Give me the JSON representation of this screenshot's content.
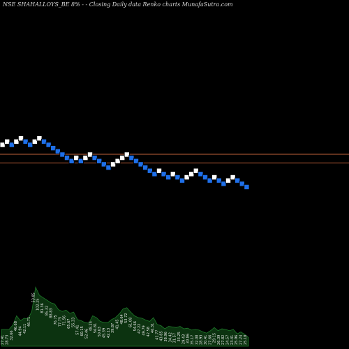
{
  "title": "NSE SHAHALLOYS_BE 8% - - Closing Daily data Renko charts MunafaSutra.com",
  "colors": {
    "background": "#000000",
    "brick_up": "#ffffff",
    "brick_down": "#1e6fe8",
    "brick_border": "#000000",
    "resistance_line": "#c0623a",
    "volume_fill": "#0c3310",
    "volume_stroke": "#1f7a2a",
    "text": "#d8d8d8"
  },
  "chart_data": {
    "type": "renko",
    "title": "NSE SHAHALLOYS_BE 8% - - Closing Daily data Renko charts MunafaSutra.com",
    "brick_size_pct": 8,
    "bricks": [
      {
        "level": 0,
        "dir": "up"
      },
      {
        "level": 1,
        "dir": "up"
      },
      {
        "level": 0,
        "dir": "down"
      },
      {
        "level": 1,
        "dir": "up"
      },
      {
        "level": 2,
        "dir": "up"
      },
      {
        "level": 1,
        "dir": "down"
      },
      {
        "level": 0,
        "dir": "down"
      },
      {
        "level": 1,
        "dir": "up"
      },
      {
        "level": 2,
        "dir": "up"
      },
      {
        "level": 1,
        "dir": "down"
      },
      {
        "level": 0,
        "dir": "down"
      },
      {
        "level": -1,
        "dir": "down"
      },
      {
        "level": -2,
        "dir": "down"
      },
      {
        "level": -3,
        "dir": "down"
      },
      {
        "level": -4,
        "dir": "down"
      },
      {
        "level": -5,
        "dir": "down"
      },
      {
        "level": -4,
        "dir": "up"
      },
      {
        "level": -5,
        "dir": "down"
      },
      {
        "level": -4,
        "dir": "up"
      },
      {
        "level": -3,
        "dir": "up"
      },
      {
        "level": -4,
        "dir": "down"
      },
      {
        "level": -5,
        "dir": "down"
      },
      {
        "level": -6,
        "dir": "down"
      },
      {
        "level": -7,
        "dir": "down"
      },
      {
        "level": -6,
        "dir": "up"
      },
      {
        "level": -5,
        "dir": "up"
      },
      {
        "level": -4,
        "dir": "up"
      },
      {
        "level": -3,
        "dir": "up"
      },
      {
        "level": -4,
        "dir": "down"
      },
      {
        "level": -5,
        "dir": "down"
      },
      {
        "level": -6,
        "dir": "down"
      },
      {
        "level": -7,
        "dir": "down"
      },
      {
        "level": -8,
        "dir": "down"
      },
      {
        "level": -9,
        "dir": "down"
      },
      {
        "level": -8,
        "dir": "up"
      },
      {
        "level": -9,
        "dir": "down"
      },
      {
        "level": -10,
        "dir": "down"
      },
      {
        "level": -9,
        "dir": "up"
      },
      {
        "level": -10,
        "dir": "down"
      },
      {
        "level": -11,
        "dir": "down"
      },
      {
        "level": -10,
        "dir": "up"
      },
      {
        "level": -9,
        "dir": "up"
      },
      {
        "level": -8,
        "dir": "up"
      },
      {
        "level": -9,
        "dir": "down"
      },
      {
        "level": -10,
        "dir": "down"
      },
      {
        "level": -11,
        "dir": "down"
      },
      {
        "level": -10,
        "dir": "up"
      },
      {
        "level": -11,
        "dir": "down"
      },
      {
        "level": -12,
        "dir": "down"
      },
      {
        "level": -11,
        "dir": "up"
      },
      {
        "level": -10,
        "dir": "up"
      },
      {
        "level": -11,
        "dir": "down"
      },
      {
        "level": -12,
        "dir": "down"
      },
      {
        "level": -13,
        "dir": "down"
      }
    ],
    "resistance_levels": [
      -2.9,
      -5.6
    ],
    "volume": [
      27,
      27,
      27,
      34,
      49,
      41,
      45,
      44,
      56,
      95,
      82,
      78,
      74,
      70,
      68,
      59,
      56,
      58,
      53,
      55,
      43,
      41,
      38,
      37,
      49,
      46,
      40,
      38,
      38,
      43,
      46,
      52,
      60,
      62,
      55,
      49,
      46,
      45,
      42,
      40,
      46,
      35,
      33,
      28,
      32,
      31,
      30,
      32,
      28,
      29,
      26,
      27,
      26,
      23,
      21,
      25,
      30,
      25,
      28,
      27,
      25,
      27,
      20,
      23,
      19,
      14
    ],
    "volume_labels": [
      "27.41",
      "28.73",
      "32.66",
      "46.68",
      "44.94",
      "42.11",
      "46.71",
      "53.85",
      "102.25",
      "81.36",
      "85.32",
      "88.83",
      "76.75",
      "77.75",
      "71.56",
      "65.67",
      "55.33",
      "57.41",
      "60.15",
      "52.46",
      "48.25",
      "56.81",
      "50.63",
      "45.39",
      "42.13",
      "39.87",
      "41.45",
      "48.64",
      "53.72",
      "61.08",
      "54.66",
      "47.22",
      "49.79",
      "42.58",
      "46.31",
      "41.77",
      "43.85",
      "38.96",
      "34.42",
      "31.57",
      "33.25",
      "29.43",
      "30.86",
      "35.17",
      "32.08",
      "28.93",
      "30.41",
      "27.66",
      "29.15",
      "26.39",
      "27.82",
      "24.57",
      "23.41",
      "25.96",
      "27.24",
      "25.18"
    ]
  }
}
